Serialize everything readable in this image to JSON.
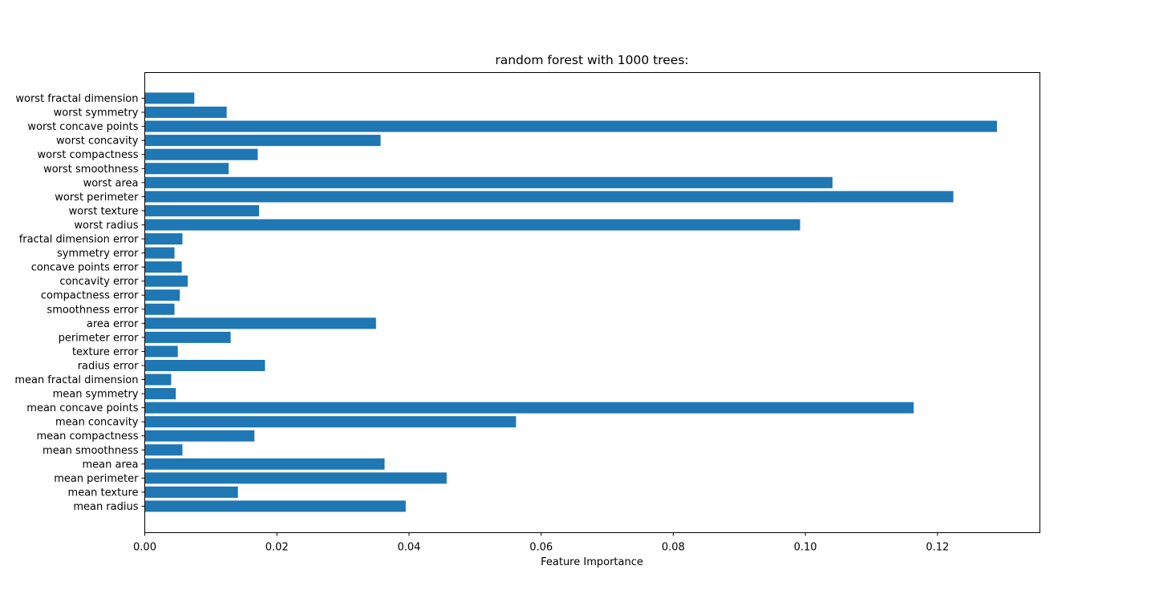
{
  "chart_data": {
    "type": "bar",
    "orientation": "horizontal",
    "title": "random forest with 1000 trees:",
    "xlabel": "Feature Importance",
    "ylabel": "",
    "xlim": [
      0,
      0.1355
    ],
    "xticks": [
      "0.00",
      "0.02",
      "0.04",
      "0.06",
      "0.08",
      "0.10",
      "0.12"
    ],
    "grid": false,
    "bar_color": "#1f77b4",
    "categories": [
      "mean radius",
      "mean texture",
      "mean perimeter",
      "mean area",
      "mean smoothness",
      "mean compactness",
      "mean concavity",
      "mean concave points",
      "mean symmetry",
      "mean fractal dimension",
      "radius error",
      "texture error",
      "perimeter error",
      "area error",
      "smoothness error",
      "compactness error",
      "concavity error",
      "concave points error",
      "symmetry error",
      "fractal dimension error",
      "worst radius",
      "worst texture",
      "worst perimeter",
      "worst area",
      "worst smoothness",
      "worst compactness",
      "worst concavity",
      "worst concave points",
      "worst symmetry",
      "worst fractal dimension"
    ],
    "values": [
      0.0395,
      0.0141,
      0.0457,
      0.0363,
      0.0057,
      0.0166,
      0.0562,
      0.1164,
      0.0047,
      0.004,
      0.0182,
      0.005,
      0.013,
      0.035,
      0.0045,
      0.0053,
      0.0065,
      0.0056,
      0.0045,
      0.0057,
      0.0992,
      0.0173,
      0.1224,
      0.1041,
      0.0127,
      0.0171,
      0.0357,
      0.129,
      0.0124,
      0.0075
    ]
  }
}
